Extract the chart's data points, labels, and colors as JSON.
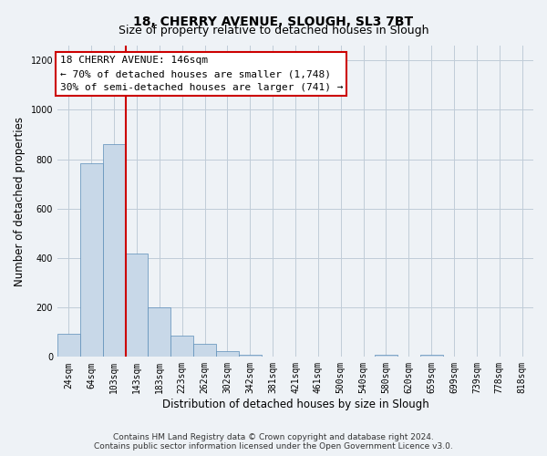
{
  "title": "18, CHERRY AVENUE, SLOUGH, SL3 7BT",
  "subtitle": "Size of property relative to detached houses in Slough",
  "xlabel": "Distribution of detached houses by size in Slough",
  "ylabel": "Number of detached properties",
  "categories": [
    "24sqm",
    "64sqm",
    "103sqm",
    "143sqm",
    "183sqm",
    "223sqm",
    "262sqm",
    "302sqm",
    "342sqm",
    "381sqm",
    "421sqm",
    "461sqm",
    "500sqm",
    "540sqm",
    "580sqm",
    "620sqm",
    "659sqm",
    "699sqm",
    "739sqm",
    "778sqm",
    "818sqm"
  ],
  "values": [
    95,
    785,
    860,
    420,
    200,
    85,
    52,
    22,
    8,
    3,
    0,
    0,
    0,
    0,
    10,
    0,
    10,
    0,
    0,
    0,
    0
  ],
  "bar_color": "#c8d8e8",
  "bar_edge_color": "#5b8db8",
  "annotation_title": "18 CHERRY AVENUE: 146sqm",
  "annotation_line1": "← 70% of detached houses are smaller (1,748)",
  "annotation_line2": "30% of semi-detached houses are larger (741) →",
  "annotation_box_color": "#ffffff",
  "annotation_box_edge": "#cc0000",
  "red_line_color": "#cc0000",
  "ylim": [
    0,
    1260
  ],
  "yticks": [
    0,
    200,
    400,
    600,
    800,
    1000,
    1200
  ],
  "footnote1": "Contains HM Land Registry data © Crown copyright and database right 2024.",
  "footnote2": "Contains public sector information licensed under the Open Government Licence v3.0.",
  "background_color": "#eef2f6",
  "plot_bg_color": "#eef2f6",
  "grid_color": "#c0ccd8",
  "title_fontsize": 10,
  "subtitle_fontsize": 9,
  "axis_label_fontsize": 8.5,
  "tick_fontsize": 7,
  "annotation_fontsize": 8,
  "footnote_fontsize": 6.5
}
